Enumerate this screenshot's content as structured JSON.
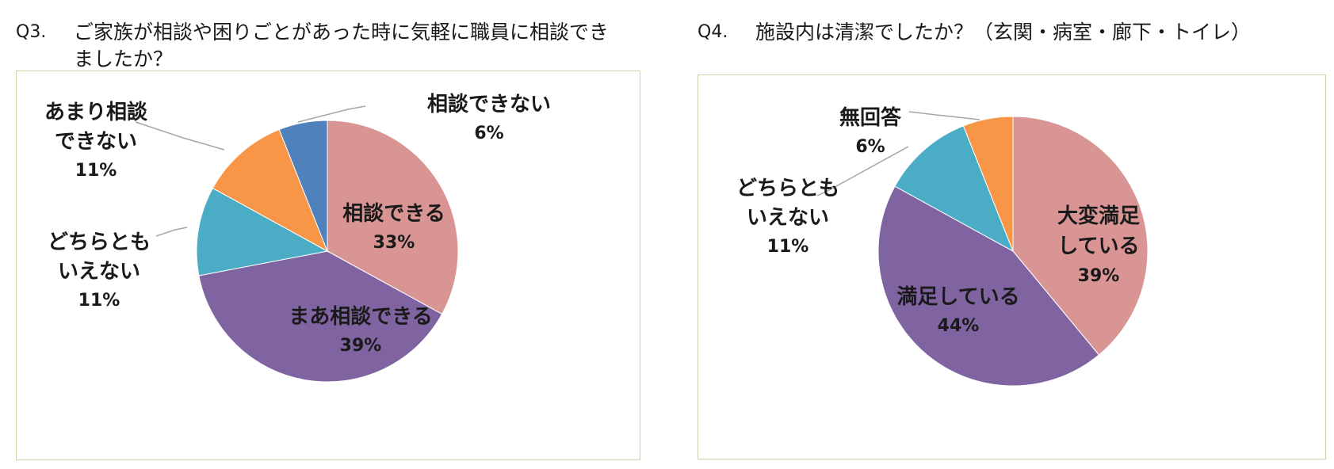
{
  "q3": {
    "number": "Q3.",
    "text": "ご家族が相談や困りごとがあった時に気軽に職員に相談でき\nましたか？"
  },
  "q4": {
    "number": "Q4.",
    "text": "施設内は清潔でしたか？（玄関・病室・廊下・トイレ）"
  },
  "chart_data": [
    {
      "type": "pie",
      "title": "",
      "start_angle_deg": 0,
      "direction": "clockwise",
      "slices": [
        {
          "label": [
            "相談できる"
          ],
          "pct_label": "33%",
          "value": 33,
          "color": "#d99594"
        },
        {
          "label": [
            "まあ相談できる"
          ],
          "pct_label": "39%",
          "value": 39,
          "color": "#8064a2"
        },
        {
          "label": [
            "どちらとも",
            "いえない"
          ],
          "pct_label": "11%",
          "value": 11,
          "color": "#4bacc6"
        },
        {
          "label": [
            "あまり相談",
            "できない"
          ],
          "pct_label": "11%",
          "value": 11,
          "color": "#f79646"
        },
        {
          "label": [
            "相談できない"
          ],
          "pct_label": "6%",
          "value": 6,
          "color": "#4f81bd"
        }
      ]
    },
    {
      "type": "pie",
      "title": "",
      "start_angle_deg": 0,
      "direction": "clockwise",
      "slices": [
        {
          "label": [
            "大変満足",
            "している"
          ],
          "pct_label": "39%",
          "value": 39,
          "color": "#d99594"
        },
        {
          "label": [
            "満足している"
          ],
          "pct_label": "44%",
          "value": 44,
          "color": "#8064a2"
        },
        {
          "label": [
            "どちらとも",
            "いえない"
          ],
          "pct_label": "11%",
          "value": 11,
          "color": "#4bacc6"
        },
        {
          "label": [
            "無回答"
          ],
          "pct_label": "6%",
          "value": 6,
          "color": "#f79646"
        }
      ]
    }
  ]
}
